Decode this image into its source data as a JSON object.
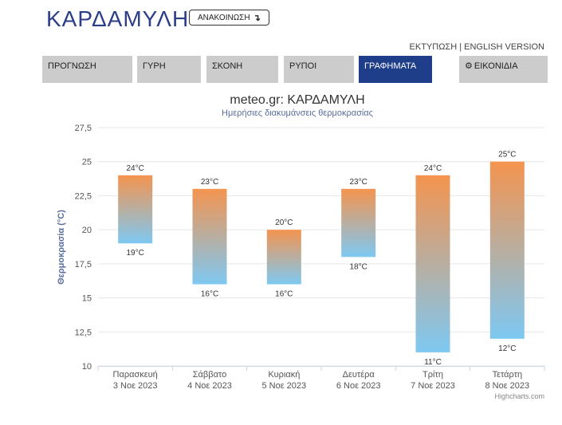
{
  "header": {
    "title": "ΚΑΡΔΑΜΥΛΗ",
    "announce_label": "ΑΝΑΚΟΙΝΩΣΗ",
    "announce_icon": "arrow-turn-down-icon",
    "print_label": "ΕΚΤΥΠΩΣΗ",
    "separator": "|",
    "english_label": "ENGLISH VERSION"
  },
  "tabs": [
    {
      "label": "ΠΡΟΓΝΩΣΗ",
      "active": false
    },
    {
      "label": "ΓΥΡΗ",
      "active": false
    },
    {
      "label": "ΣΚΟΝΗ",
      "active": false
    },
    {
      "label": "ΡΥΠΟΙ",
      "active": false
    },
    {
      "label": "ΓΡΑΦΗΜΑΤΑ",
      "active": true
    },
    {
      "label": "ΕΙΚΟΝΙΔΙΑ",
      "active": false,
      "icon": "gear-icon"
    }
  ],
  "colors": {
    "accent": "#1f3e8a",
    "title": "#2c3e87",
    "tab_bg": "#cccccc",
    "bar_top": "#f4944f",
    "bar_bottom": "#7ec8f2"
  },
  "chart_data": {
    "type": "columnrange",
    "title": "meteo.gr: ΚΑΡΔΑΜΥΛΗ",
    "subtitle": "Ημερήσιες διακυμάνσεις θερμοκρασίας",
    "ylabel": "Θερμοκρασία (°C)",
    "ylim": [
      10,
      27.5
    ],
    "yticks": [
      "10",
      "12,5",
      "15",
      "17,5",
      "20",
      "22,5",
      "25",
      "27,5"
    ],
    "categories": [
      {
        "day": "Παρασκευή",
        "date": "3 Νοε 2023"
      },
      {
        "day": "Σάββατο",
        "date": "4 Νοε 2023"
      },
      {
        "day": "Κυριακή",
        "date": "5 Νοε 2023"
      },
      {
        "day": "Δευτέρα",
        "date": "6 Νοε 2023"
      },
      {
        "day": "Τρίτη",
        "date": "7 Νοε 2023"
      },
      {
        "day": "Τετάρτη",
        "date": "8 Νοε 2023"
      }
    ],
    "low": [
      19,
      16,
      16,
      18,
      11,
      12
    ],
    "high": [
      24,
      23,
      20,
      23,
      24,
      25
    ],
    "unit": "°C",
    "grid": true,
    "credits": "Highcharts.com"
  }
}
